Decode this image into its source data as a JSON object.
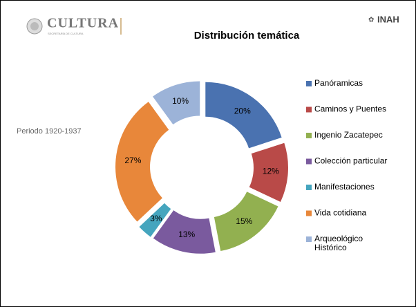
{
  "header": {
    "logo": "CULTURA",
    "logo_subtitle": "SECRETARÍA DE CULTURA",
    "institution": "INAH"
  },
  "side_note": "Periodo 1920-1937",
  "chart_data": {
    "type": "donut",
    "title": "Distribución temática",
    "categories": [
      "Panóramicas",
      "Caminos y Puentes",
      "Ingenio Zacatepec",
      "Colección particular",
      "Manifestaciones",
      "Vida cotidiana",
      "Arqueológico Histórico"
    ],
    "values": [
      20,
      12,
      15,
      13,
      3,
      27,
      10
    ],
    "value_labels": [
      "20%",
      "12%",
      "15%",
      "13%",
      "3%",
      "27%",
      "10%"
    ],
    "colors": [
      "#4a72b0",
      "#b94a48",
      "#92b050",
      "#7a5a9e",
      "#45a5be",
      "#e8873a",
      "#9cb3d8"
    ],
    "legend": "right"
  }
}
